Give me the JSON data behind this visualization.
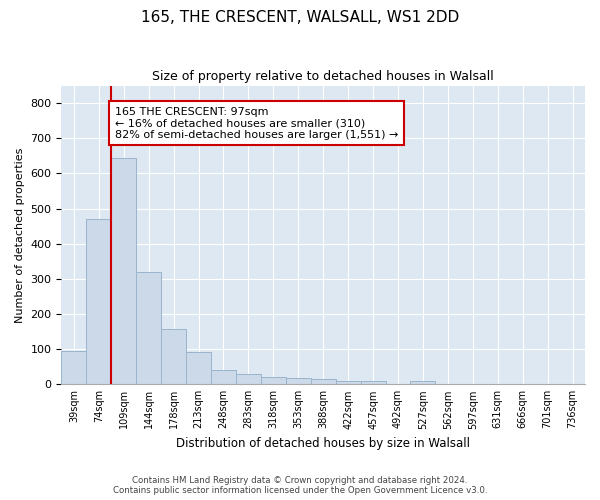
{
  "title1": "165, THE CRESCENT, WALSALL, WS1 2DD",
  "title2": "Size of property relative to detached houses in Walsall",
  "xlabel": "Distribution of detached houses by size in Walsall",
  "ylabel": "Number of detached properties",
  "categories": [
    "39sqm",
    "74sqm",
    "109sqm",
    "144sqm",
    "178sqm",
    "213sqm",
    "248sqm",
    "283sqm",
    "318sqm",
    "353sqm",
    "388sqm",
    "422sqm",
    "457sqm",
    "492sqm",
    "527sqm",
    "562sqm",
    "597sqm",
    "631sqm",
    "666sqm",
    "701sqm",
    "736sqm"
  ],
  "values": [
    95,
    470,
    645,
    320,
    158,
    92,
    40,
    28,
    22,
    18,
    15,
    10,
    8,
    0,
    10,
    0,
    0,
    0,
    0,
    0,
    0
  ],
  "bar_color": "#ccd9e8",
  "bar_edge_color": "#9ab5cc",
  "annotation_text": "165 THE CRESCENT: 97sqm\n← 16% of detached houses are smaller (310)\n82% of semi-detached houses are larger (1,551) →",
  "annotation_box_color": "white",
  "annotation_box_edge_color": "#cc0000",
  "grid_color": "#dde6ef",
  "background_color": "#dde8f2",
  "footer1": "Contains HM Land Registry data © Crown copyright and database right 2024.",
  "footer2": "Contains public sector information licensed under the Open Government Licence v3.0.",
  "ylim": [
    0,
    850
  ],
  "yticks": [
    0,
    100,
    200,
    300,
    400,
    500,
    600,
    700,
    800
  ]
}
